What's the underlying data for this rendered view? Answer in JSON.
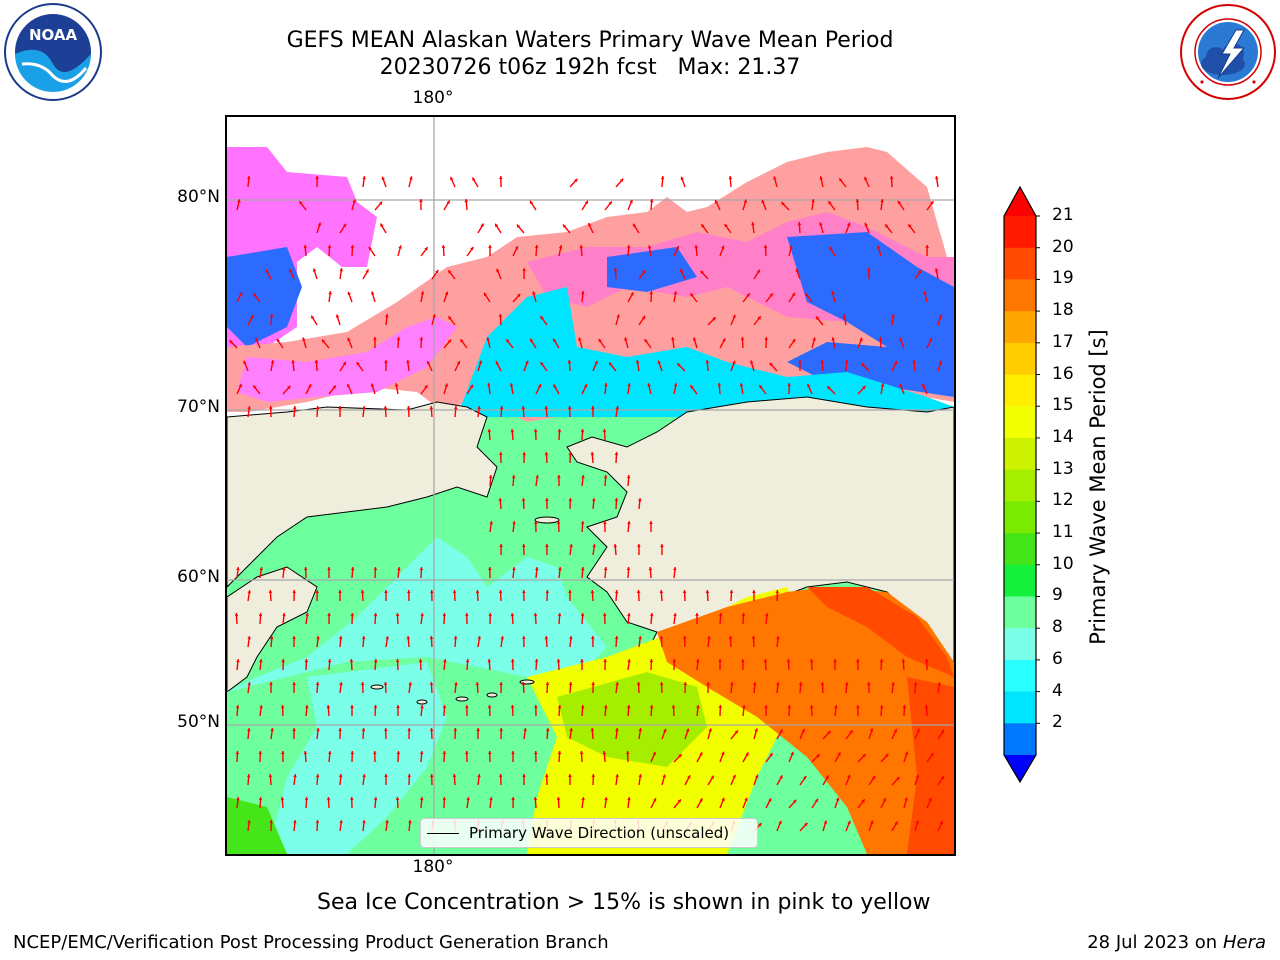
{
  "header": {
    "title_line1": "GEFS MEAN Alaskan Waters Primary Wave Mean Period",
    "title_line2": "20230726 t06z 192h fcst   Max: 21.37"
  },
  "logos": {
    "left": {
      "icon": "noaa-logo",
      "text": "NOAA",
      "ring_text": "NATIONAL OCEANIC AND ATMOSPHERIC ADMINISTRATION · U.S. DEPARTMENT OF COMMERCE"
    },
    "right": {
      "icon": "nws-logo",
      "ring_text": "NATIONAL WEATHER SERVICE"
    }
  },
  "map": {
    "lon_labels": {
      "top": "180°",
      "bottom": "180°"
    },
    "lat_labels": [
      "80°N",
      "70°N",
      "60°N",
      "50°N"
    ],
    "land_color": "#efeddb",
    "vector_color": "#ff0000",
    "legend": {
      "label": "Primary Wave Direction (unscaled)"
    }
  },
  "colorbar": {
    "label": "Primary Wave Mean Period [s]",
    "ticks": [
      "21",
      "20",
      "19",
      "18",
      "17",
      "16",
      "15",
      "14",
      "13",
      "12",
      "11",
      "10",
      "9",
      "8",
      "6",
      "4",
      "2"
    ],
    "colors_top_to_bottom": [
      "#ff1a00",
      "#ff4a00",
      "#ff7700",
      "#ffa500",
      "#ffcc00",
      "#ffee00",
      "#f2ff00",
      "#ccf200",
      "#a6ee00",
      "#7aea00",
      "#46e51a",
      "#14f03c",
      "#6eff9e",
      "#7bffe8",
      "#28ffff",
      "#00e5ff",
      "#0077ff"
    ],
    "over_color": "#ff0000",
    "under_color": "#0000ff"
  },
  "note": "Sea Ice Concentration > 15% is shown in pink to yellow",
  "footer": {
    "left": "NCEP/EMC/Verification Post Processing Product Generation Branch",
    "right_date": "28 Jul 2023 on ",
    "right_host": "Hera"
  }
}
